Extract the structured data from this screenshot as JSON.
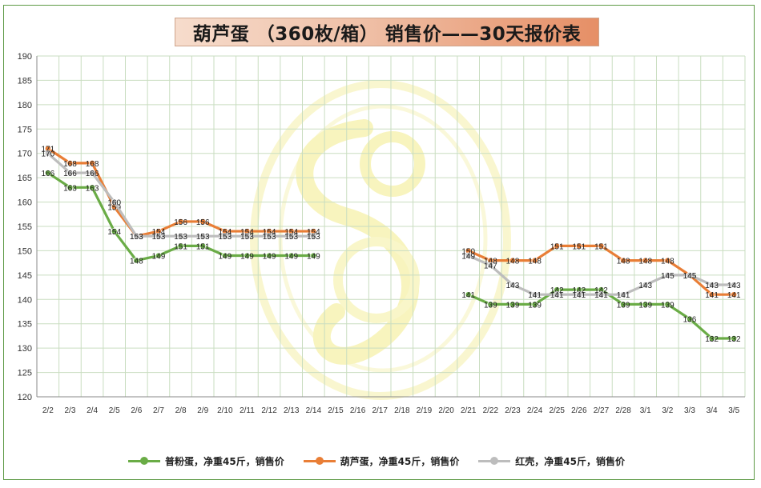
{
  "title": "葫芦蛋 （360枚/箱） 销售价——30天报价表",
  "colors": {
    "green": "#6aac46",
    "orange": "#e97e36",
    "gray": "#bdbdbd",
    "grid": "#c9ddc0",
    "frame": "#5e9a46"
  },
  "chart_data": {
    "type": "line",
    "categories": [
      "2/2",
      "2/3",
      "2/4",
      "2/5",
      "2/6",
      "2/7",
      "2/8",
      "2/9",
      "2/10",
      "2/11",
      "2/12",
      "2/13",
      "2/14",
      "2/15",
      "2/16",
      "2/17",
      "2/18",
      "2/19",
      "2/20",
      "2/21",
      "2/22",
      "2/23",
      "2/24",
      "2/25",
      "2/26",
      "2/27",
      "2/28",
      "3/1",
      "3/2",
      "3/3",
      "3/4",
      "3/5"
    ],
    "ylim": [
      120,
      190
    ],
    "ystep": 5,
    "grid": true,
    "legend_position": "bottom",
    "series": [
      {
        "name": "普粉蛋，净重45斤，销售价",
        "color_key": "green",
        "values": [
          166,
          163,
          163,
          154,
          148,
          149,
          151,
          151,
          149,
          149,
          149,
          149,
          149,
          null,
          null,
          null,
          null,
          null,
          null,
          141,
          139,
          139,
          139,
          142,
          142,
          142,
          139,
          139,
          139,
          136,
          132,
          132
        ]
      },
      {
        "name": "葫芦蛋，净重45斤，销售价",
        "color_key": "orange",
        "values": [
          171,
          168,
          168,
          159,
          153,
          154,
          156,
          156,
          154,
          154,
          154,
          154,
          154,
          null,
          null,
          null,
          null,
          null,
          null,
          150,
          148,
          148,
          148,
          151,
          151,
          151,
          148,
          148,
          148,
          145,
          141,
          141
        ]
      },
      {
        "name": "红壳，净重45斤，销售价",
        "color_key": "gray",
        "values": [
          170,
          166,
          166,
          160,
          153,
          153,
          153,
          153,
          153,
          153,
          153,
          153,
          153,
          null,
          null,
          null,
          null,
          null,
          null,
          149,
          147,
          143,
          141,
          141,
          141,
          141,
          141,
          143,
          145,
          145,
          143,
          143
        ]
      }
    ]
  }
}
